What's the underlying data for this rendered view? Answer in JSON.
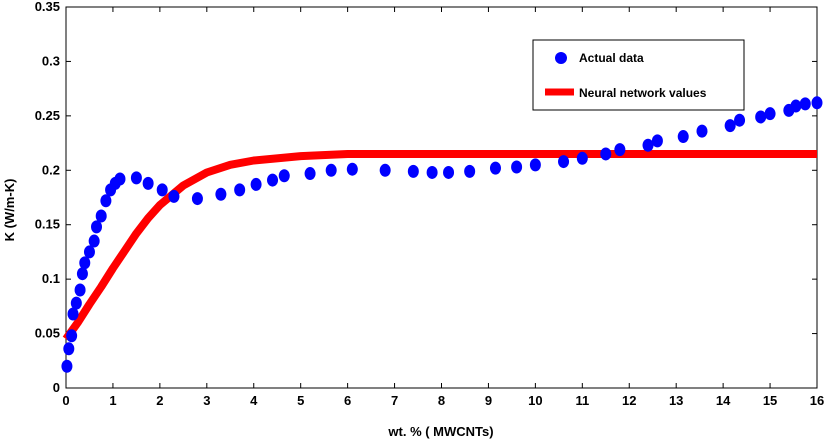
{
  "chart_data": {
    "type": "scatter",
    "xlabel": "wt. % ( MWCNTs)",
    "ylabel": "K (W/m-K)",
    "xlim": [
      0,
      16
    ],
    "ylim": [
      0,
      0.35
    ],
    "xticks": [
      "0",
      "1",
      "2",
      "3",
      "4",
      "5",
      "6",
      "7",
      "8",
      "9",
      "10",
      "11",
      "12",
      "13",
      "14",
      "15",
      "16"
    ],
    "yticks": [
      "0",
      "0.05",
      "0.1",
      "0.15",
      "0.2",
      "0.25",
      "0.3",
      "0.35"
    ],
    "legend_position": "top-right",
    "grid": false,
    "series": [
      {
        "name": "Actual data",
        "style": "markers",
        "color": "#0000ff",
        "points": [
          [
            0.02,
            0.02
          ],
          [
            0.06,
            0.036
          ],
          [
            0.12,
            0.048
          ],
          [
            0.15,
            0.068
          ],
          [
            0.22,
            0.078
          ],
          [
            0.3,
            0.09
          ],
          [
            0.35,
            0.105
          ],
          [
            0.4,
            0.115
          ],
          [
            0.5,
            0.125
          ],
          [
            0.6,
            0.135
          ],
          [
            0.65,
            0.148
          ],
          [
            0.75,
            0.158
          ],
          [
            0.85,
            0.172
          ],
          [
            0.95,
            0.182
          ],
          [
            1.05,
            0.188
          ],
          [
            1.15,
            0.192
          ],
          [
            1.5,
            0.193
          ],
          [
            1.75,
            0.188
          ],
          [
            2.05,
            0.182
          ],
          [
            2.3,
            0.176
          ],
          [
            2.8,
            0.174
          ],
          [
            3.3,
            0.178
          ],
          [
            3.7,
            0.182
          ],
          [
            4.05,
            0.187
          ],
          [
            4.4,
            0.191
          ],
          [
            4.65,
            0.195
          ],
          [
            5.2,
            0.197
          ],
          [
            5.65,
            0.2
          ],
          [
            6.1,
            0.201
          ],
          [
            6.8,
            0.2
          ],
          [
            7.4,
            0.199
          ],
          [
            7.8,
            0.198
          ],
          [
            8.15,
            0.198
          ],
          [
            8.6,
            0.199
          ],
          [
            9.15,
            0.202
          ],
          [
            9.6,
            0.203
          ],
          [
            10.0,
            0.205
          ],
          [
            10.6,
            0.208
          ],
          [
            11.0,
            0.211
          ],
          [
            11.5,
            0.215
          ],
          [
            11.8,
            0.219
          ],
          [
            12.4,
            0.223
          ],
          [
            12.6,
            0.227
          ],
          [
            13.15,
            0.231
          ],
          [
            13.55,
            0.236
          ],
          [
            14.15,
            0.241
          ],
          [
            14.35,
            0.246
          ],
          [
            14.8,
            0.249
          ],
          [
            15.0,
            0.252
          ],
          [
            15.4,
            0.255
          ],
          [
            15.55,
            0.259
          ],
          [
            15.75,
            0.261
          ],
          [
            16.0,
            0.262
          ]
        ]
      },
      {
        "name": "Neural network values",
        "style": "line",
        "color": "#ff0000",
        "points": [
          [
            0.0,
            0.045
          ],
          [
            0.25,
            0.06
          ],
          [
            0.5,
            0.077
          ],
          [
            0.75,
            0.093
          ],
          [
            1.0,
            0.11
          ],
          [
            1.25,
            0.126
          ],
          [
            1.5,
            0.142
          ],
          [
            1.75,
            0.156
          ],
          [
            2.0,
            0.168
          ],
          [
            2.5,
            0.186
          ],
          [
            3.0,
            0.198
          ],
          [
            3.5,
            0.205
          ],
          [
            4.0,
            0.209
          ],
          [
            5.0,
            0.213
          ],
          [
            6.0,
            0.215
          ],
          [
            8.0,
            0.215
          ],
          [
            10.0,
            0.215
          ],
          [
            12.0,
            0.215
          ],
          [
            14.0,
            0.215
          ],
          [
            16.0,
            0.215
          ]
        ]
      }
    ]
  }
}
